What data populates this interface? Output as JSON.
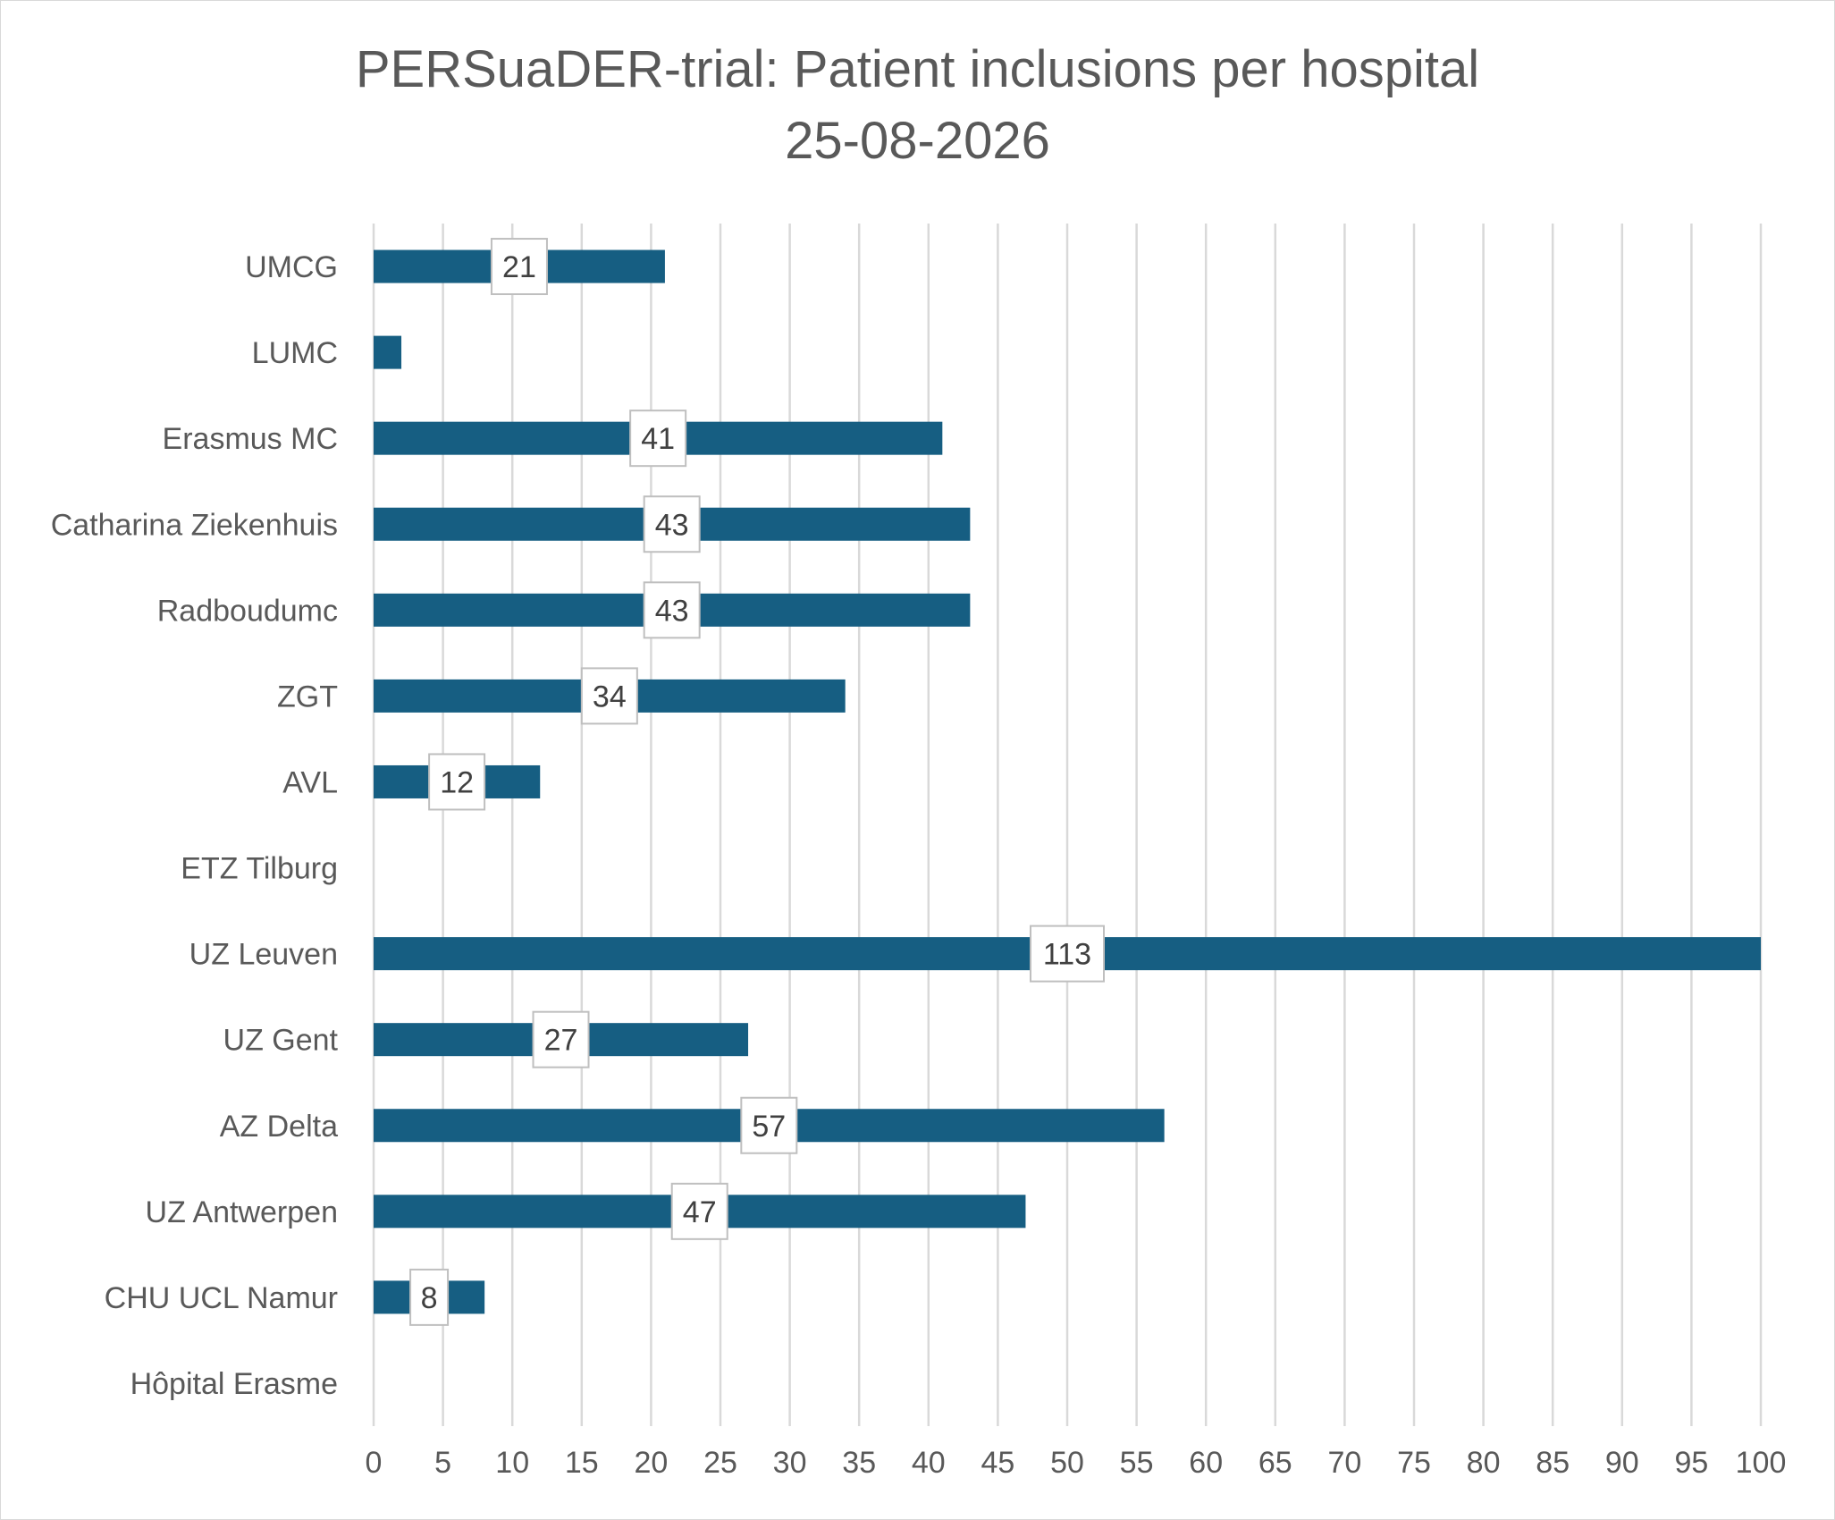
{
  "chart_data": {
    "type": "bar",
    "orientation": "horizontal",
    "title_lines": [
      "PERSuaDER-trial: Patient inclusions per hospital",
      "25-08-2026"
    ],
    "xlabel": "",
    "ylabel": "",
    "xlim": [
      0,
      100
    ],
    "x_ticks": [
      "0",
      "5",
      "10",
      "15",
      "20",
      "25",
      "30",
      "35",
      "40",
      "45",
      "50",
      "55",
      "60",
      "65",
      "70",
      "75",
      "80",
      "85",
      "90",
      "95",
      "100"
    ],
    "grid": "vertical",
    "legend": "none",
    "bar_color": "#165e82",
    "categories": [
      "UMCG",
      "LUMC",
      "Erasmus MC",
      "Catharina Ziekenhuis",
      "Radboudumc",
      "ZGT",
      "AVL",
      "ETZ Tilburg",
      "UZ Leuven",
      "UZ Gent",
      "AZ Delta",
      "UZ Antwerpen",
      "CHU UCL Namur ",
      "Hôpital Erasme"
    ],
    "values": [
      21,
      2,
      41,
      43,
      43,
      34,
      12,
      0,
      113,
      27,
      57,
      47,
      8,
      0
    ],
    "data_labels": [
      "21",
      "",
      "41",
      "43",
      "43",
      "34",
      "12",
      "",
      "113",
      "27",
      "57",
      "47",
      "8",
      ""
    ]
  }
}
